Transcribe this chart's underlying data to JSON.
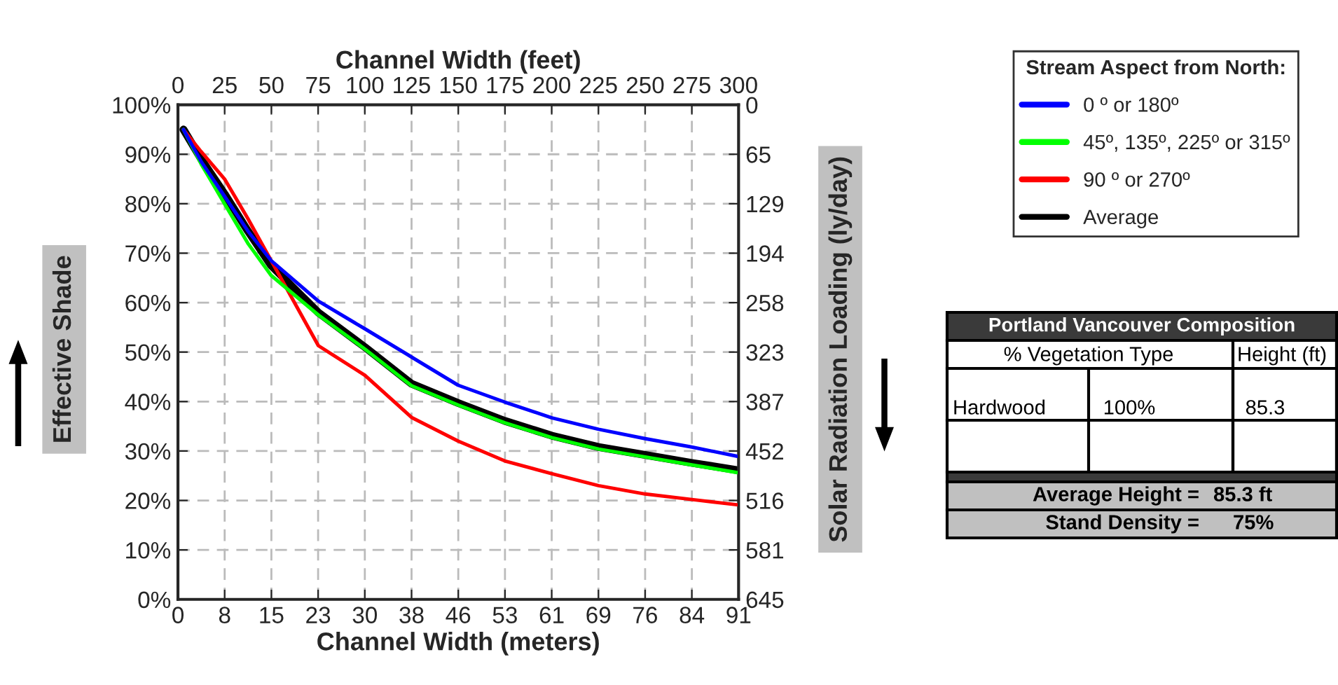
{
  "chart_data": {
    "type": "line",
    "xlabel": "Channel Width (meters)",
    "x2label": "Channel Width (feet)",
    "ylabel": "Effective Shade",
    "y2label": "Solar Radiation Loading (ly/day)",
    "legend_title": "Stream Aspect from North:",
    "legend": "top right",
    "grid": true,
    "line_style": "solid",
    "x": [
      0.9,
      3.8,
      7.6,
      11.4,
      15.2,
      22.9,
      30.5,
      38.1,
      45.7,
      53.3,
      61.0,
      68.6,
      76.2,
      83.8,
      91.4
    ],
    "series": [
      {
        "name": "0 º or 180º",
        "color": "#0000ff",
        "values": [
          95,
          88.5,
          81.5,
          74.5,
          68.5,
          60.3,
          54.7,
          49,
          43.3,
          39.9,
          36.7,
          34.4,
          32.5,
          30.8,
          28.9
        ]
      },
      {
        "name": "45º, 135º, 225º or 315º",
        "color": "#00ff00",
        "values": [
          95,
          88,
          80,
          72,
          65.5,
          57.5,
          50.6,
          43.2,
          39.3,
          35.7,
          32.7,
          30.4,
          28.8,
          27.2,
          25.6
        ]
      },
      {
        "name": "90 º or 270º",
        "color": "#ff0000",
        "values": [
          95,
          90.5,
          85,
          77,
          68.5,
          51.3,
          45.3,
          36.8,
          32,
          28,
          25.4,
          23,
          21.3,
          20.2,
          19.1
        ]
      },
      {
        "name": "Average",
        "color": "#000000",
        "values": [
          95,
          89,
          82,
          74.5,
          67.5,
          58,
          51,
          43.6,
          39.7,
          36.1,
          33.1,
          30.8,
          29.2,
          27.6,
          26.1
        ]
      }
    ],
    "xlim": [
      0,
      91.44
    ],
    "xticks": [
      0,
      {
        "value": 7.62,
        "label": "8"
      },
      {
        "value": 15.24,
        "label": "15"
      },
      {
        "value": 22.86,
        "label": "23"
      },
      {
        "value": 30.48,
        "label": "30"
      },
      {
        "value": 38.1,
        "label": "38"
      },
      {
        "value": 45.72,
        "label": "46"
      },
      {
        "value": 53.34,
        "label": "53"
      },
      {
        "value": 60.96,
        "label": "61"
      },
      {
        "value": 68.58,
        "label": "69"
      },
      {
        "value": 76.2,
        "label": "76"
      },
      {
        "value": 83.82,
        "label": "84"
      },
      {
        "value": 91.44,
        "label": "91"
      }
    ],
    "x2lim": [
      0,
      300
    ],
    "x2ticks": [
      0,
      25,
      50,
      75,
      100,
      125,
      150,
      175,
      200,
      225,
      250,
      275,
      300
    ],
    "ylim": [
      0,
      100
    ],
    "yticks": [
      {
        "value": 0,
        "label": "0%"
      },
      {
        "value": 10,
        "label": "10%"
      },
      {
        "value": 20,
        "label": "20%"
      },
      {
        "value": 30,
        "label": "30%"
      },
      {
        "value": 40,
        "label": "40%"
      },
      {
        "value": 50,
        "label": "50%"
      },
      {
        "value": 60,
        "label": "60%"
      },
      {
        "value": 70,
        "label": "70%"
      },
      {
        "value": 80,
        "label": "80%"
      },
      {
        "value": 90,
        "label": "90%"
      },
      {
        "value": 100,
        "label": "100%"
      }
    ],
    "y2lim": [
      645,
      0
    ],
    "y2ticks": [
      {
        "value": 0,
        "label": "0"
      },
      {
        "value": 64.5,
        "label": "65"
      },
      {
        "value": 129,
        "label": "129"
      },
      {
        "value": 193.5,
        "label": "194"
      },
      {
        "value": 258,
        "label": "258"
      },
      {
        "value": 322.5,
        "label": "323"
      },
      {
        "value": 387,
        "label": "387"
      },
      {
        "value": 451.5,
        "label": "452"
      },
      {
        "value": 516,
        "label": "516"
      },
      {
        "value": 580.5,
        "label": "581"
      },
      {
        "value": 645,
        "label": "645"
      }
    ],
    "annotations": [
      "Portland Vancouver Composition",
      "% Vegetation Type",
      "Height (ft)",
      "Hardwood",
      "100%",
      "85.3",
      "Average Height =",
      "85.3 ft",
      "Stand Density =",
      "75%"
    ]
  }
}
